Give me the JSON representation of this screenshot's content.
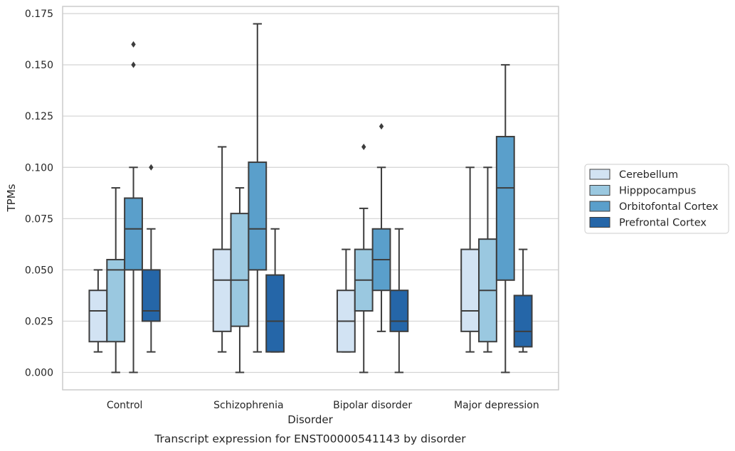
{
  "chart_data": {
    "type": "box",
    "title": "",
    "caption": "Transcript expression for ENST00000541143 by disorder",
    "xlabel": "Disorder",
    "ylabel": "TPMs",
    "ylim": [
      -0.0085,
      0.1785
    ],
    "yticks": [
      "0.000",
      "0.025",
      "0.050",
      "0.075",
      "0.100",
      "0.125",
      "0.150",
      "0.175"
    ],
    "ytick_values": [
      0.0,
      0.025,
      0.05,
      0.075,
      0.1,
      0.125,
      0.15,
      0.175
    ],
    "grid": "horizontal",
    "legend_position": "right",
    "categories": [
      "Control",
      "Schizophrenia",
      "Bipolar disorder",
      "Major depression"
    ],
    "series": [
      {
        "name": "Cerebellum",
        "color": "#d2e3f3",
        "boxes": [
          {
            "whisker_low": 0.01,
            "q1": 0.015,
            "median": 0.03,
            "q3": 0.04,
            "whisker_high": 0.05,
            "outliers": []
          },
          {
            "whisker_low": 0.01,
            "q1": 0.02,
            "median": 0.045,
            "q3": 0.06,
            "whisker_high": 0.11,
            "outliers": []
          },
          {
            "whisker_low": 0.01,
            "q1": 0.01,
            "median": 0.025,
            "q3": 0.04,
            "whisker_high": 0.06,
            "outliers": []
          },
          {
            "whisker_low": 0.01,
            "q1": 0.02,
            "median": 0.03,
            "q3": 0.06,
            "whisker_high": 0.1,
            "outliers": []
          }
        ]
      },
      {
        "name": "Hipppocampus",
        "color": "#9ac8e0",
        "boxes": [
          {
            "whisker_low": 0.0,
            "q1": 0.015,
            "median": 0.05,
            "q3": 0.055,
            "whisker_high": 0.09,
            "outliers": []
          },
          {
            "whisker_low": 0.0,
            "q1": 0.0225,
            "median": 0.045,
            "q3": 0.0775,
            "whisker_high": 0.09,
            "outliers": []
          },
          {
            "whisker_low": 0.0,
            "q1": 0.03,
            "median": 0.045,
            "q3": 0.06,
            "whisker_high": 0.08,
            "outliers": [
              0.11
            ]
          },
          {
            "whisker_low": 0.01,
            "q1": 0.015,
            "median": 0.04,
            "q3": 0.065,
            "whisker_high": 0.1,
            "outliers": []
          }
        ]
      },
      {
        "name": "Orbitofontal Cortex",
        "color": "#5a9fcb",
        "boxes": [
          {
            "whisker_low": 0.0,
            "q1": 0.05,
            "median": 0.07,
            "q3": 0.085,
            "whisker_high": 0.1,
            "outliers": [
              0.15,
              0.16
            ]
          },
          {
            "whisker_low": 0.01,
            "q1": 0.05,
            "median": 0.07,
            "q3": 0.1025,
            "whisker_high": 0.17,
            "outliers": []
          },
          {
            "whisker_low": 0.02,
            "q1": 0.04,
            "median": 0.055,
            "q3": 0.07,
            "whisker_high": 0.1,
            "outliers": [
              0.12
            ]
          },
          {
            "whisker_low": 0.0,
            "q1": 0.045,
            "median": 0.09,
            "q3": 0.115,
            "whisker_high": 0.15,
            "outliers": []
          }
        ]
      },
      {
        "name": "Prefrontal Cortex",
        "color": "#2566a8",
        "boxes": [
          {
            "whisker_low": 0.01,
            "q1": 0.025,
            "median": 0.03,
            "q3": 0.05,
            "whisker_high": 0.07,
            "outliers": [
              0.1
            ]
          },
          {
            "whisker_low": 0.01,
            "q1": 0.01,
            "median": 0.025,
            "q3": 0.0475,
            "whisker_high": 0.07,
            "outliers": []
          },
          {
            "whisker_low": 0.0,
            "q1": 0.02,
            "median": 0.025,
            "q3": 0.04,
            "whisker_high": 0.07,
            "outliers": []
          },
          {
            "whisker_low": 0.01,
            "q1": 0.0125,
            "median": 0.02,
            "q3": 0.0375,
            "whisker_high": 0.06,
            "outliers": []
          }
        ]
      }
    ]
  }
}
